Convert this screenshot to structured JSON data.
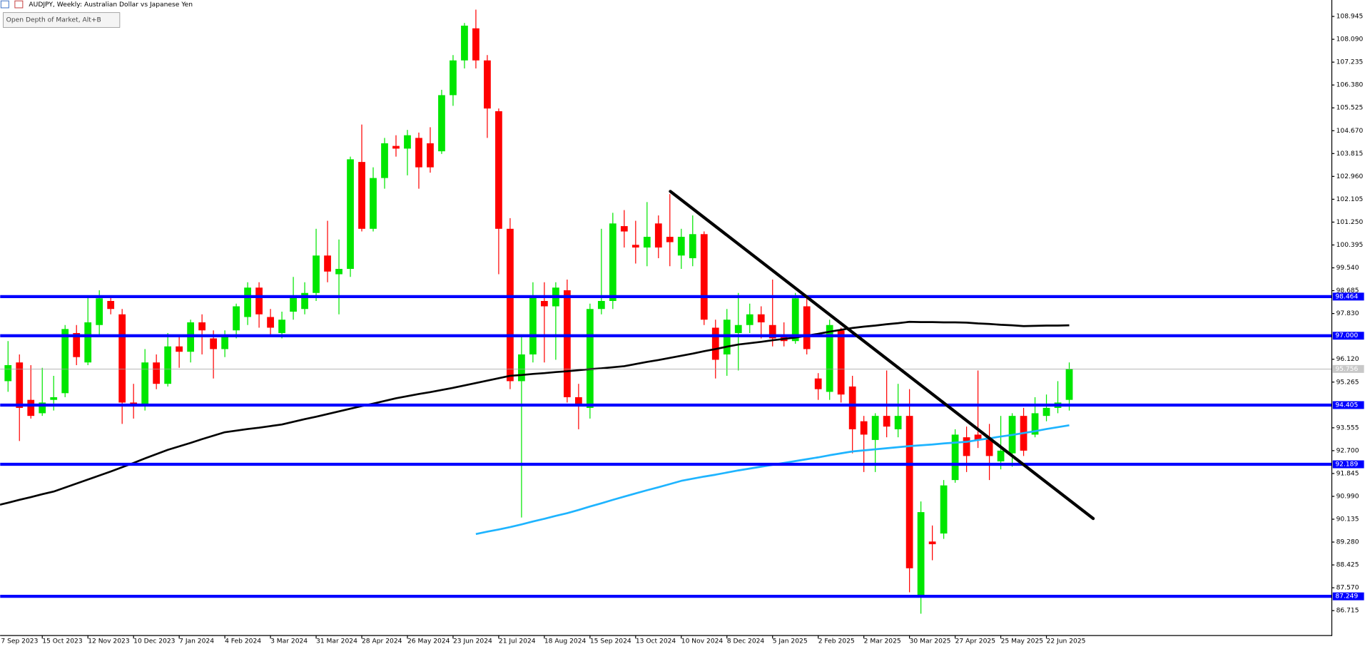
{
  "chart_data": {
    "type": "candlestick",
    "title": "AUDJPY, Weekly:  Australian Dollar vs Japanese Yen",
    "tooltip": "Open Depth of Market, Alt+B",
    "categories": [
      "7 Sep 2023",
      null,
      null,
      null,
      "15 Oct 2023",
      null,
      null,
      null,
      "12 Nov 2023",
      null,
      null,
      null,
      "10 Dec 2023",
      null,
      null,
      null,
      "7 Jan 2024",
      null,
      null,
      null,
      "4 Feb 2024",
      null,
      null,
      null,
      "3 Mar 2024",
      null,
      null,
      null,
      "31 Mar 2024",
      null,
      null,
      null,
      "28 Apr 2024",
      null,
      null,
      null,
      "26 May 2024",
      null,
      null,
      null,
      "23 Jun 2024",
      null,
      null,
      null,
      "21 Jul 2024",
      null,
      null,
      null,
      "18 Aug 2024",
      null,
      null,
      null,
      "15 Sep 2024",
      null,
      null,
      null,
      "13 Oct 2024",
      null,
      null,
      null,
      "10 Nov 2024",
      null,
      null,
      null,
      "8 Dec 2024",
      null,
      null,
      null,
      "5 Jan 2025",
      null,
      null,
      null,
      "2 Feb 2025",
      null,
      null,
      null,
      "2 Mar 2025",
      null,
      null,
      null,
      "30 Mar 2025",
      null,
      null,
      null,
      "27 Apr 2025",
      null,
      null,
      null,
      "25 May 2025",
      null,
      null,
      null,
      "22 Jun 2025",
      null,
      null
    ],
    "ohlc": [
      [
        95.5,
        96.3,
        95.2,
        96.0
      ],
      [
        95.3,
        96.8,
        94.9,
        95.9
      ],
      [
        96.0,
        96.3,
        93.06,
        94.3
      ],
      [
        94.6,
        95.9,
        93.9,
        94.0
      ],
      [
        94.1,
        95.8,
        94.0,
        94.5
      ],
      [
        94.6,
        95.5,
        94.2,
        94.7
      ],
      [
        94.85,
        97.4,
        94.7,
        97.25
      ],
      [
        97.1,
        97.4,
        95.9,
        96.2
      ],
      [
        96.0,
        98.5,
        95.9,
        97.5
      ],
      [
        97.4,
        98.7,
        97.0,
        98.4
      ],
      [
        98.3,
        98.5,
        97.8,
        98.0
      ],
      [
        97.8,
        98.0,
        93.7,
        94.5
      ],
      [
        94.5,
        95.2,
        93.9,
        94.4
      ],
      [
        94.4,
        96.5,
        94.2,
        96.0
      ],
      [
        96.0,
        96.3,
        95.0,
        95.2
      ],
      [
        95.2,
        97.1,
        95.1,
        96.6
      ],
      [
        96.6,
        97.0,
        95.8,
        96.4
      ],
      [
        96.4,
        97.6,
        96.0,
        97.5
      ],
      [
        97.5,
        97.8,
        96.3,
        97.2
      ],
      [
        96.9,
        97.2,
        95.4,
        96.5
      ],
      [
        96.5,
        97.2,
        96.2,
        97.0
      ],
      [
        97.2,
        98.2,
        96.9,
        98.1
      ],
      [
        97.7,
        99.0,
        97.4,
        98.8
      ],
      [
        98.8,
        99.0,
        97.3,
        97.8
      ],
      [
        97.7,
        98.0,
        97.0,
        97.3
      ],
      [
        97.1,
        97.9,
        96.9,
        97.6
      ],
      [
        97.9,
        99.2,
        97.6,
        98.5
      ],
      [
        98.0,
        99.0,
        97.8,
        98.6
      ],
      [
        98.6,
        101.0,
        98.3,
        100.0
      ],
      [
        100.0,
        101.3,
        99.0,
        99.4
      ],
      [
        99.3,
        100.6,
        97.8,
        99.5
      ],
      [
        99.5,
        103.7,
        99.2,
        103.6
      ],
      [
        103.5,
        104.9,
        100.9,
        101.0
      ],
      [
        101.0,
        103.3,
        100.9,
        102.9
      ],
      [
        102.9,
        104.4,
        102.5,
        104.2
      ],
      [
        104.1,
        104.5,
        103.7,
        104.0
      ],
      [
        104.0,
        104.7,
        103.0,
        104.5
      ],
      [
        104.4,
        104.6,
        102.5,
        103.3
      ],
      [
        104.2,
        104.8,
        103.1,
        103.3
      ],
      [
        103.9,
        106.2,
        103.8,
        106.0
      ],
      [
        106.0,
        107.5,
        105.6,
        107.3
      ],
      [
        107.3,
        108.7,
        107.0,
        108.6
      ],
      [
        108.5,
        109.2,
        107.0,
        107.3
      ],
      [
        107.3,
        107.5,
        104.4,
        105.5
      ],
      [
        105.4,
        105.5,
        99.3,
        101.0
      ],
      [
        101.0,
        101.4,
        95.0,
        95.3
      ],
      [
        95.3,
        97.0,
        90.2,
        96.3
      ],
      [
        96.3,
        99.0,
        96.0,
        98.5
      ],
      [
        98.3,
        99.0,
        96.0,
        98.1
      ],
      [
        98.1,
        99.0,
        96.1,
        98.8
      ],
      [
        98.7,
        99.1,
        94.5,
        94.7
      ],
      [
        94.7,
        95.2,
        93.5,
        94.4
      ],
      [
        94.3,
        98.2,
        93.9,
        98.0
      ],
      [
        98.0,
        101.0,
        97.8,
        98.3
      ],
      [
        98.3,
        101.6,
        98.0,
        101.2
      ],
      [
        101.1,
        101.7,
        100.3,
        100.9
      ],
      [
        100.4,
        101.3,
        99.7,
        100.3
      ],
      [
        100.3,
        102.0,
        99.6,
        100.7
      ],
      [
        101.2,
        101.5,
        99.9,
        100.3
      ],
      [
        100.7,
        102.3,
        99.6,
        100.5
      ],
      [
        100.0,
        101.0,
        99.5,
        100.7
      ],
      [
        99.9,
        101.5,
        99.6,
        100.8
      ],
      [
        100.8,
        100.9,
        97.4,
        97.6
      ],
      [
        97.3,
        97.6,
        95.4,
        96.1
      ],
      [
        96.3,
        98.0,
        95.5,
        97.6
      ],
      [
        97.1,
        98.6,
        95.7,
        97.4
      ],
      [
        97.4,
        98.2,
        97.1,
        97.8
      ],
      [
        97.8,
        98.1,
        96.9,
        97.5
      ],
      [
        97.4,
        99.1,
        96.6,
        96.9
      ],
      [
        97.0,
        97.5,
        96.6,
        96.8
      ],
      [
        96.8,
        98.6,
        96.7,
        98.4
      ],
      [
        98.1,
        98.4,
        96.3,
        96.5
      ],
      [
        95.4,
        95.6,
        94.6,
        95.0
      ],
      [
        94.9,
        97.6,
        94.6,
        97.4
      ],
      [
        97.2,
        97.3,
        94.5,
        94.8
      ],
      [
        95.1,
        95.5,
        92.6,
        93.5
      ],
      [
        93.8,
        94.0,
        91.9,
        93.3
      ],
      [
        93.1,
        94.1,
        91.9,
        94.0
      ],
      [
        94.0,
        95.7,
        93.2,
        93.6
      ],
      [
        93.5,
        95.2,
        93.2,
        94.0
      ],
      [
        94.0,
        95.0,
        87.4,
        88.3
      ],
      [
        87.2,
        90.8,
        86.6,
        90.4
      ],
      [
        89.3,
        89.9,
        88.6,
        89.2
      ],
      [
        89.6,
        91.6,
        89.4,
        91.4
      ],
      [
        91.6,
        93.5,
        91.5,
        93.3
      ],
      [
        93.2,
        93.6,
        91.9,
        92.5
      ],
      [
        93.3,
        95.7,
        92.8,
        93.1
      ],
      [
        93.2,
        93.7,
        91.6,
        92.5
      ],
      [
        92.3,
        94.0,
        92.0,
        92.7
      ],
      [
        92.6,
        94.1,
        92.1,
        94.0
      ],
      [
        94.0,
        94.3,
        92.5,
        92.7
      ],
      [
        93.3,
        94.7,
        93.2,
        94.1
      ],
      [
        94.0,
        94.8,
        93.8,
        94.3
      ],
      [
        94.3,
        95.3,
        94.1,
        94.5
      ],
      [
        94.6,
        96.0,
        94.2,
        95.75
      ]
    ],
    "up_color": "#00e600",
    "down_color": "#ff0000",
    "series": [
      {
        "color": "#000000",
        "values": [
          90.65,
          90.75,
          90.86,
          90.96,
          91.07,
          91.17,
          91.32,
          91.47,
          91.62,
          91.77,
          91.92,
          92.08,
          92.24,
          92.41,
          92.57,
          92.73,
          92.86,
          92.99,
          93.13,
          93.26,
          93.39,
          93.45,
          93.51,
          93.56,
          93.62,
          93.68,
          93.78,
          93.88,
          93.97,
          94.07,
          94.17,
          94.27,
          94.37,
          94.46,
          94.56,
          94.66,
          94.74,
          94.82,
          94.89,
          94.97,
          95.05,
          95.14,
          95.23,
          95.32,
          95.41,
          95.5,
          95.53,
          95.57,
          95.6,
          95.64,
          95.67,
          95.71,
          95.75,
          95.78,
          95.82,
          95.86,
          95.94,
          96.02,
          96.09,
          96.17,
          96.25,
          96.33,
          96.42,
          96.5,
          96.59,
          96.67,
          96.72,
          96.77,
          96.83,
          96.88,
          96.93,
          97.0,
          97.07,
          97.15,
          97.22,
          97.29,
          97.34,
          97.38,
          97.43,
          97.47,
          97.52,
          97.51,
          97.51,
          97.5,
          97.5,
          97.49,
          97.46,
          97.44,
          97.41,
          97.39,
          97.36,
          97.37,
          97.38,
          97.38,
          97.39
        ]
      },
      {
        "color": "#1eb4ff",
        "values": [
          null,
          null,
          null,
          null,
          null,
          null,
          null,
          null,
          null,
          null,
          null,
          null,
          null,
          null,
          null,
          null,
          null,
          null,
          null,
          null,
          null,
          null,
          null,
          null,
          null,
          null,
          null,
          null,
          null,
          null,
          null,
          null,
          null,
          null,
          null,
          null,
          null,
          null,
          null,
          null,
          null,
          null,
          89.58,
          89.67,
          89.75,
          89.84,
          89.94,
          90.05,
          90.15,
          90.26,
          90.36,
          90.48,
          90.61,
          90.73,
          90.86,
          90.98,
          91.1,
          91.22,
          91.33,
          91.45,
          91.57,
          91.65,
          91.73,
          91.8,
          91.88,
          91.96,
          92.03,
          92.1,
          92.17,
          92.24,
          92.31,
          92.38,
          92.45,
          92.53,
          92.6,
          92.67,
          92.71,
          92.75,
          92.79,
          92.83,
          92.87,
          92.9,
          92.93,
          92.97,
          93.0,
          93.03,
          93.1,
          93.16,
          93.23,
          93.29,
          93.36,
          93.43,
          93.51,
          93.58,
          93.65
        ]
      }
    ],
    "levels": [
      98.464,
      {
        "value": 97,
        "label": "97.000"
      },
      94.405,
      92.189,
      87.249
    ],
    "level_color": "#0000ff",
    "last_price": 95.756,
    "trendline": {
      "x": [
        59.04,
        96.1
      ],
      "values": [
        102.4,
        90.16
      ],
      "color": "#000000"
    },
    "ylim": [
      85.8,
      109.56
    ],
    "yticks": [
      108.945,
      {
        "value": 108.09,
        "label": "108.090"
      },
      107.235,
      {
        "value": 106.38,
        "label": "106.380"
      },
      105.525,
      {
        "value": 104.67,
        "label": "104.670"
      },
      103.815,
      {
        "value": 102.96,
        "label": "102.960"
      },
      102.105,
      {
        "value": 101.25,
        "label": "101.250"
      },
      100.395,
      {
        "value": 99.54,
        "label": "99.540"
      },
      98.685,
      {
        "value": 97.83,
        "label": "97.830"
      },
      {
        "value": 96.12,
        "label": "96.120"
      },
      95.265,
      93.555,
      {
        "value": 92.7,
        "label": "92.700"
      },
      91.845,
      {
        "value": 90.99,
        "label": "90.990"
      },
      90.135,
      {
        "value": 89.28,
        "label": "89.280"
      },
      88.425,
      {
        "value": 87.57,
        "label": "87.570"
      },
      86.715
    ],
    "grid": false
  }
}
